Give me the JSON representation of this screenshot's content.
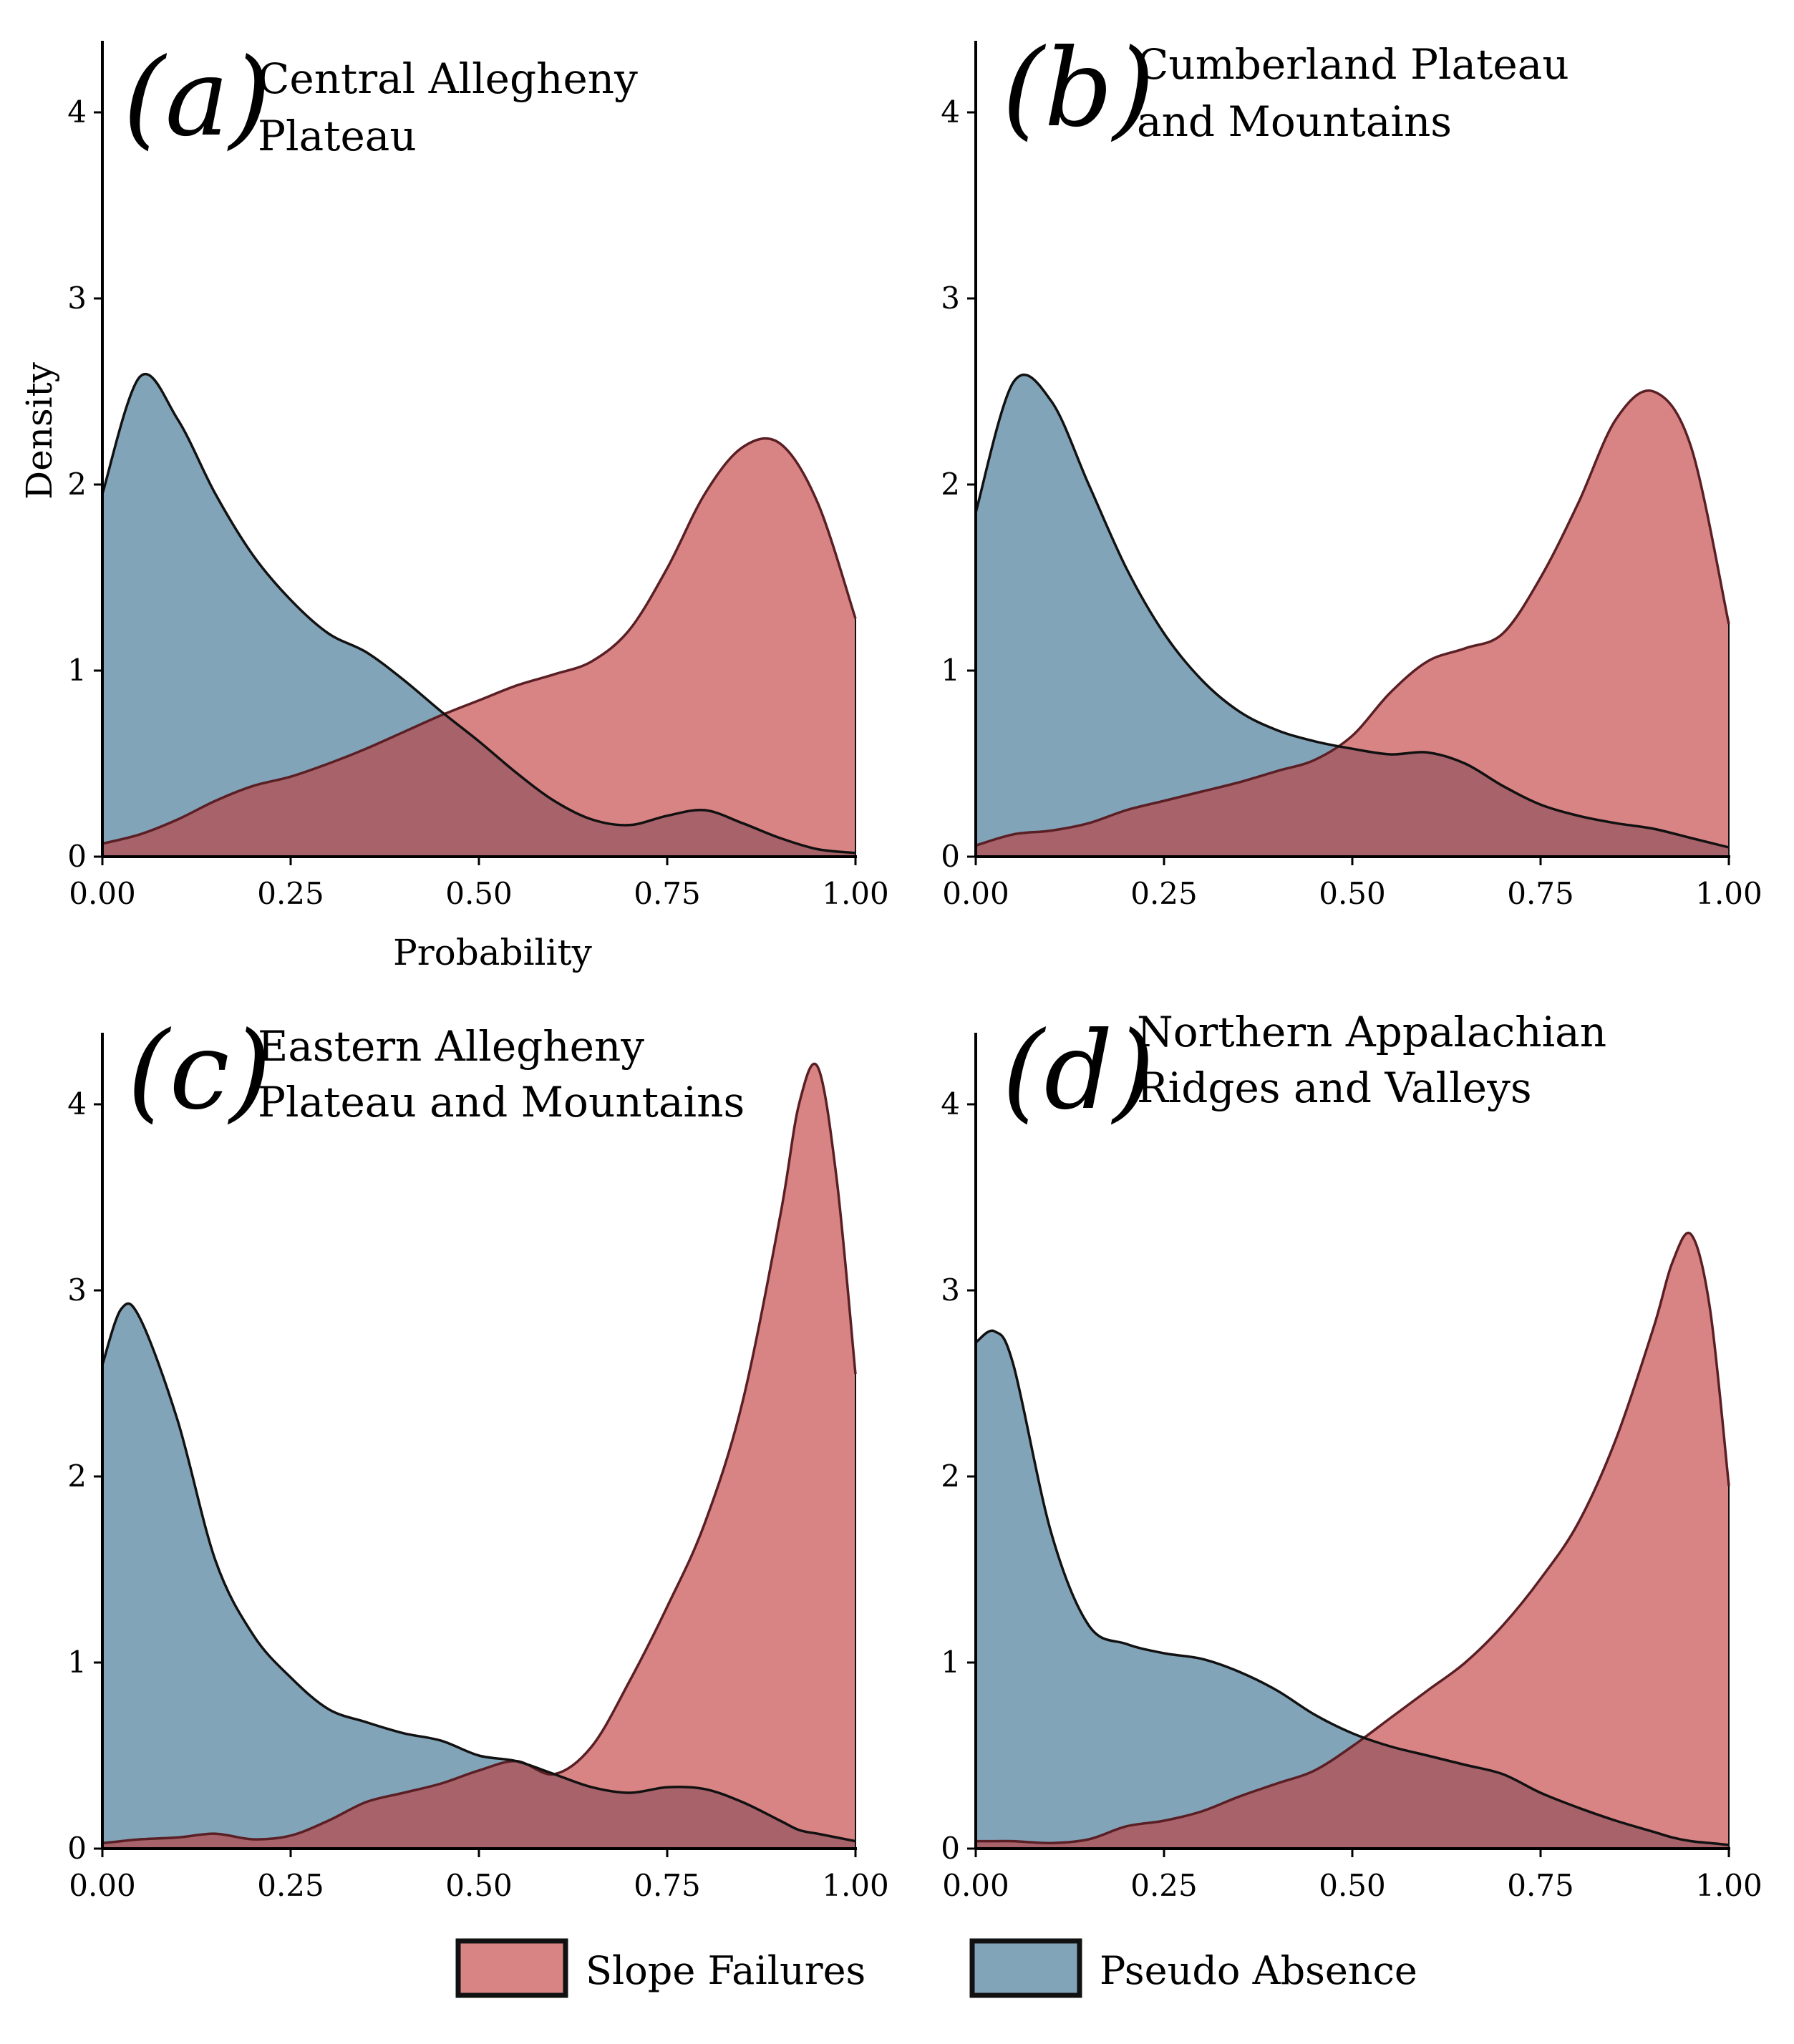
{
  "colors": {
    "slope_failures": "#d98484",
    "pseudo_absence": "#82a4b9",
    "overlap": "#a7626a",
    "outline": "#111111"
  },
  "legend": {
    "slope_failures": "Slope Failures",
    "pseudo_absence": "Pseudo Absence"
  },
  "chart_data": [
    {
      "type": "area",
      "letter": "(a)",
      "title_lines": [
        "Central Allegheny",
        "Plateau"
      ],
      "xlabel": "Probability",
      "ylabel": "Density",
      "xlim": [
        0,
        1
      ],
      "ylim": [
        0,
        4.4
      ],
      "xticks": [
        0,
        0.25,
        0.5,
        0.75,
        1.0
      ],
      "xtick_labels": [
        "0.00",
        "0.25",
        "0.50",
        "0.75",
        "1.00"
      ],
      "yticks": [
        0,
        1,
        2,
        3,
        4
      ],
      "ytick_labels": [
        "0",
        "1",
        "2",
        "3",
        "4"
      ],
      "x": [
        0,
        0.05,
        0.1,
        0.15,
        0.2,
        0.25,
        0.3,
        0.35,
        0.4,
        0.45,
        0.5,
        0.55,
        0.6,
        0.65,
        0.7,
        0.75,
        0.8,
        0.85,
        0.9,
        0.95,
        1.0
      ],
      "series": [
        {
          "name": "Pseudo Absence",
          "values": [
            1.95,
            2.58,
            2.35,
            1.95,
            1.62,
            1.38,
            1.2,
            1.1,
            0.95,
            0.78,
            0.62,
            0.45,
            0.3,
            0.2,
            0.17,
            0.22,
            0.25,
            0.18,
            0.1,
            0.04,
            0.02
          ]
        },
        {
          "name": "Slope Failures",
          "values": [
            0.07,
            0.12,
            0.2,
            0.3,
            0.38,
            0.43,
            0.5,
            0.58,
            0.67,
            0.76,
            0.84,
            0.92,
            0.98,
            1.05,
            1.22,
            1.55,
            1.95,
            2.2,
            2.22,
            1.9,
            1.28
          ]
        }
      ]
    },
    {
      "type": "area",
      "letter": "(b)",
      "title_lines": [
        "Cumberland Plateau",
        "and Mountains"
      ],
      "xlabel": "",
      "ylabel": "",
      "xlim": [
        0,
        1
      ],
      "ylim": [
        0,
        4.4
      ],
      "xticks": [
        0,
        0.25,
        0.5,
        0.75,
        1.0
      ],
      "xtick_labels": [
        "0.00",
        "0.25",
        "0.50",
        "0.75",
        "1.00"
      ],
      "yticks": [
        0,
        1,
        2,
        3,
        4
      ],
      "ytick_labels": [
        "0",
        "1",
        "2",
        "3",
        "4"
      ],
      "x": [
        0,
        0.05,
        0.1,
        0.15,
        0.2,
        0.25,
        0.3,
        0.35,
        0.4,
        0.45,
        0.5,
        0.55,
        0.6,
        0.65,
        0.7,
        0.75,
        0.8,
        0.85,
        0.9,
        0.95,
        1.0
      ],
      "series": [
        {
          "name": "Pseudo Absence",
          "values": [
            1.85,
            2.55,
            2.45,
            2.0,
            1.55,
            1.2,
            0.95,
            0.78,
            0.68,
            0.62,
            0.58,
            0.55,
            0.56,
            0.5,
            0.38,
            0.28,
            0.22,
            0.18,
            0.15,
            0.1,
            0.05
          ]
        },
        {
          "name": "Slope Failures",
          "values": [
            0.06,
            0.12,
            0.14,
            0.18,
            0.25,
            0.3,
            0.35,
            0.4,
            0.46,
            0.52,
            0.65,
            0.88,
            1.05,
            1.12,
            1.2,
            1.5,
            1.9,
            2.35,
            2.5,
            2.2,
            1.25
          ]
        }
      ]
    },
    {
      "type": "area",
      "letter": "(c)",
      "title_lines": [
        "Eastern Allegheny",
        "Plateau and Mountains"
      ],
      "xlabel": "",
      "ylabel": "",
      "xlim": [
        0,
        1
      ],
      "ylim": [
        0,
        4.4
      ],
      "xticks": [
        0,
        0.25,
        0.5,
        0.75,
        1.0
      ],
      "xtick_labels": [
        "0.00",
        "0.25",
        "0.50",
        "0.75",
        "1.00"
      ],
      "yticks": [
        0,
        1,
        2,
        3,
        4
      ],
      "ytick_labels": [
        "0",
        "1",
        "2",
        "3",
        "4"
      ],
      "x": [
        0,
        0.025,
        0.05,
        0.1,
        0.15,
        0.2,
        0.25,
        0.3,
        0.35,
        0.4,
        0.45,
        0.5,
        0.55,
        0.6,
        0.65,
        0.7,
        0.75,
        0.8,
        0.85,
        0.9,
        0.925,
        0.95,
        0.975,
        1.0
      ],
      "series": [
        {
          "name": "Pseudo Absence",
          "values": [
            2.6,
            2.9,
            2.85,
            2.3,
            1.55,
            1.15,
            0.92,
            0.75,
            0.68,
            0.62,
            0.58,
            0.5,
            0.47,
            0.4,
            0.33,
            0.3,
            0.33,
            0.32,
            0.25,
            0.15,
            0.1,
            0.08,
            0.06,
            0.04
          ]
        },
        {
          "name": "Slope Failures",
          "values": [
            0.03,
            0.04,
            0.05,
            0.06,
            0.08,
            0.05,
            0.07,
            0.15,
            0.25,
            0.3,
            0.35,
            0.42,
            0.47,
            0.4,
            0.55,
            0.9,
            1.3,
            1.75,
            2.4,
            3.4,
            4.0,
            4.2,
            3.6,
            2.55
          ]
        }
      ]
    },
    {
      "type": "area",
      "letter": "(d)",
      "title_lines": [
        "Northern Appalachian",
        "Ridges and Valleys"
      ],
      "xlabel": "",
      "ylabel": "",
      "xlim": [
        0,
        1
      ],
      "ylim": [
        0,
        4.4
      ],
      "xticks": [
        0,
        0.25,
        0.5,
        0.75,
        1.0
      ],
      "xtick_labels": [
        "0.00",
        "0.25",
        "0.50",
        "0.75",
        "1.00"
      ],
      "yticks": [
        0,
        1,
        2,
        3,
        4
      ],
      "ytick_labels": [
        "0",
        "1",
        "2",
        "3",
        "4"
      ],
      "x": [
        0,
        0.025,
        0.05,
        0.1,
        0.15,
        0.2,
        0.25,
        0.3,
        0.35,
        0.4,
        0.45,
        0.5,
        0.55,
        0.6,
        0.65,
        0.7,
        0.75,
        0.8,
        0.85,
        0.9,
        0.925,
        0.95,
        0.975,
        1.0
      ],
      "series": [
        {
          "name": "Pseudo Absence",
          "values": [
            2.72,
            2.78,
            2.6,
            1.7,
            1.2,
            1.1,
            1.05,
            1.02,
            0.95,
            0.85,
            0.72,
            0.62,
            0.55,
            0.5,
            0.45,
            0.4,
            0.3,
            0.22,
            0.15,
            0.09,
            0.06,
            0.04,
            0.03,
            0.02
          ]
        },
        {
          "name": "Slope Failures",
          "values": [
            0.04,
            0.04,
            0.04,
            0.03,
            0.05,
            0.12,
            0.15,
            0.2,
            0.28,
            0.35,
            0.42,
            0.55,
            0.7,
            0.85,
            1.0,
            1.2,
            1.45,
            1.75,
            2.2,
            2.8,
            3.15,
            3.3,
            2.9,
            1.95
          ]
        }
      ]
    }
  ]
}
